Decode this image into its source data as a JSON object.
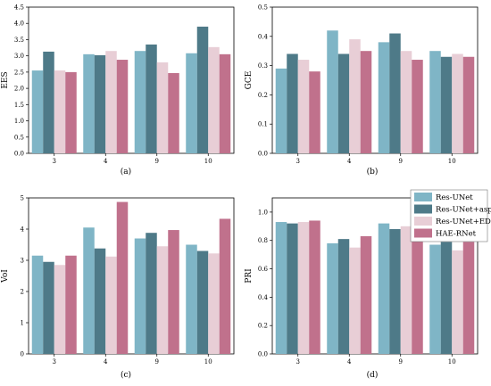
{
  "colors": {
    "Res-UNet": "#7fb5c6",
    "Res-UNet+aspp": "#4e7a88",
    "Res-UNet+ED": "#e8ced6",
    "HAE-RNet": "#c0718c"
  },
  "legend": [
    "Res-UNet",
    "Res-UNet+aspp",
    "Res-UNet+ED",
    "HAE-RNet"
  ],
  "chart_data": [
    {
      "type": "bar",
      "panel": "(a)",
      "ylabel": "EES",
      "xlabel": "",
      "categories": [
        "3",
        "4",
        "9",
        "10"
      ],
      "ylim": [
        0,
        4.5
      ],
      "yticks": [
        "0.0",
        "0.5",
        "1.0",
        "1.5",
        "2.0",
        "2.5",
        "3.0",
        "3.5",
        "4.0",
        "4.5"
      ],
      "series": [
        {
          "name": "Res-UNet",
          "values": [
            2.55,
            3.05,
            3.15,
            3.08
          ]
        },
        {
          "name": "Res-UNet+aspp",
          "values": [
            3.13,
            3.02,
            3.35,
            3.9
          ]
        },
        {
          "name": "Res-UNet+ED",
          "values": [
            2.55,
            3.15,
            2.8,
            3.27
          ]
        },
        {
          "name": "HAE-RNet",
          "values": [
            2.5,
            2.88,
            2.47,
            3.05
          ]
        }
      ]
    },
    {
      "type": "bar",
      "panel": "(b)",
      "ylabel": "GCE",
      "xlabel": "",
      "categories": [
        "3",
        "4",
        "9",
        "10"
      ],
      "ylim": [
        0,
        0.5
      ],
      "yticks": [
        "0.0",
        "0.1",
        "0.2",
        "0.3",
        "0.4",
        "0.5"
      ],
      "series": [
        {
          "name": "Res-UNet",
          "values": [
            0.29,
            0.42,
            0.38,
            0.35
          ]
        },
        {
          "name": "Res-UNet+aspp",
          "values": [
            0.34,
            0.34,
            0.41,
            0.33
          ]
        },
        {
          "name": "Res-UNet+ED",
          "values": [
            0.32,
            0.39,
            0.35,
            0.34
          ]
        },
        {
          "name": "HAE-RNet",
          "values": [
            0.28,
            0.35,
            0.32,
            0.33
          ]
        }
      ]
    },
    {
      "type": "bar",
      "panel": "(c)",
      "ylabel": "VoI",
      "xlabel": "",
      "categories": [
        "3",
        "4",
        "9",
        "10"
      ],
      "ylim": [
        0,
        5
      ],
      "yticks": [
        "0",
        "1",
        "2",
        "3",
        "4",
        "5"
      ],
      "series": [
        {
          "name": "Res-UNet",
          "values": [
            3.15,
            4.05,
            3.7,
            3.5
          ]
        },
        {
          "name": "Res-UNet+aspp",
          "values": [
            2.95,
            3.38,
            3.88,
            3.3
          ]
        },
        {
          "name": "Res-UNet+ED",
          "values": [
            2.85,
            3.12,
            3.45,
            3.22
          ]
        },
        {
          "name": "HAE-RNet",
          "values": [
            3.15,
            4.87,
            3.97,
            4.33
          ]
        }
      ]
    },
    {
      "type": "bar",
      "panel": "(d)",
      "ylabel": "PRI",
      "xlabel": "",
      "categories": [
        "3",
        "4",
        "9",
        "10"
      ],
      "ylim": [
        0,
        1.1
      ],
      "yticks": [
        "0.0",
        "0.2",
        "0.4",
        "0.6",
        "0.8",
        "1.0"
      ],
      "series": [
        {
          "name": "Res-UNet",
          "values": [
            0.93,
            0.78,
            0.92,
            0.77
          ]
        },
        {
          "name": "Res-UNet+aspp",
          "values": [
            0.92,
            0.81,
            0.88,
            0.79
          ]
        },
        {
          "name": "Res-UNet+ED",
          "values": [
            0.93,
            0.75,
            0.9,
            0.73
          ]
        },
        {
          "name": "HAE-RNet",
          "values": [
            0.94,
            0.83,
            0.92,
            0.79
          ]
        }
      ]
    }
  ]
}
